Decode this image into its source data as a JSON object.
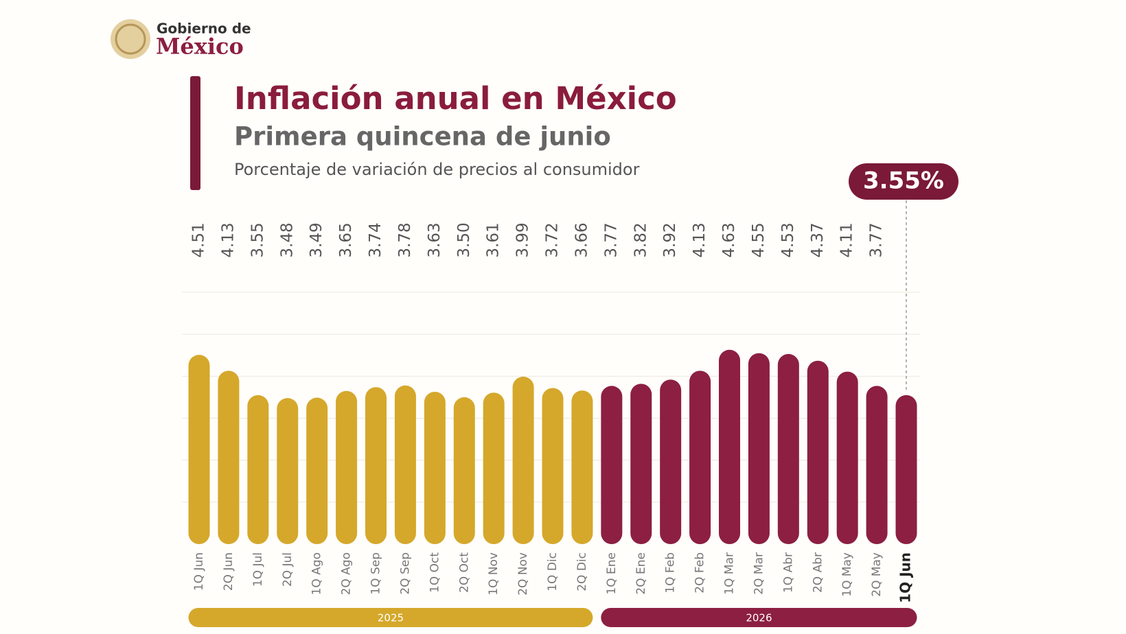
{
  "logo": {
    "line1": "Gobierno de",
    "line2": "México"
  },
  "chart_data": {
    "type": "bar",
    "title": "Inflación anual en México",
    "subtitle": "Primera quincena de junio",
    "description": "Porcentaje de variación de precios al consumidor",
    "categories": [
      "1Q Jun",
      "2Q Jun",
      "1Q Jul",
      "2Q Jul",
      "1Q Ago",
      "2Q Ago",
      "1Q Sep",
      "2Q Sep",
      "1Q Oct",
      "2Q Oct",
      "1Q Nov",
      "2Q Nov",
      "1Q Dic",
      "2Q Dic",
      "1Q Ene",
      "2Q Ene",
      "1Q Feb",
      "2Q Feb",
      "1Q Mar",
      "2Q Mar",
      "1Q Abr",
      "2Q Abr",
      "1Q May",
      "2Q May",
      "1Q Jun"
    ],
    "series": [
      {
        "name": "2025",
        "color": "#d5a82b",
        "values": [
          4.51,
          4.13,
          3.55,
          3.48,
          3.49,
          3.65,
          3.74,
          3.78,
          3.63,
          3.5,
          3.61,
          3.99,
          3.72,
          3.66,
          null,
          null,
          null,
          null,
          null,
          null,
          null,
          null,
          null,
          null,
          null
        ],
        "value_labels": [
          "4.51",
          "4.13",
          "3.55",
          "3.48",
          "3.49",
          "3.65",
          "3.74",
          "3.78",
          "3.63",
          "3.50",
          "3.61",
          "3.99",
          "3.72",
          "3.66",
          null,
          null,
          null,
          null,
          null,
          null,
          null,
          null,
          null,
          null,
          null
        ]
      },
      {
        "name": "2026",
        "color": "#8c1f42",
        "values": [
          null,
          null,
          null,
          null,
          null,
          null,
          null,
          null,
          null,
          null,
          null,
          null,
          null,
          null,
          3.77,
          3.82,
          3.92,
          4.13,
          4.63,
          4.55,
          4.53,
          4.37,
          4.11,
          3.77,
          3.55
        ],
        "value_labels": [
          null,
          null,
          null,
          null,
          null,
          null,
          null,
          null,
          null,
          null,
          null,
          null,
          null,
          null,
          "3.77",
          "3.82",
          "3.92",
          "4.13",
          "4.63",
          "4.55",
          "4.53",
          "4.37",
          "4.11",
          "3.77",
          "3.55%"
        ]
      }
    ],
    "ylim": [
      0,
      6
    ],
    "yticks": [
      1,
      2,
      3,
      4,
      5,
      6
    ],
    "grid": true
  }
}
